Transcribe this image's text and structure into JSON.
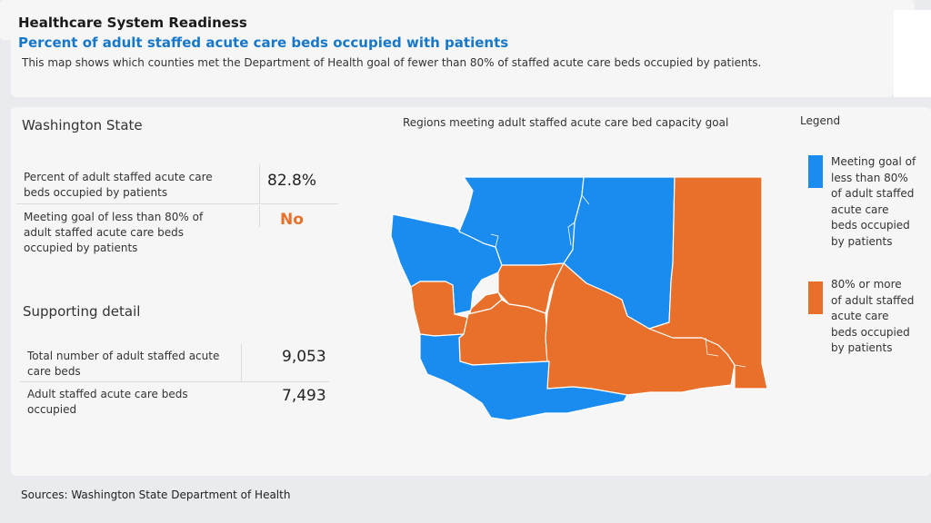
{
  "header": {
    "title": "Healthcare System Readiness",
    "subtitle": "Percent of adult staffed acute care beds occupied with patients",
    "description": "This map shows which counties met the Department of Health goal of fewer than 80% of staffed acute care beds occupied by patients."
  },
  "state": {
    "heading": "Washington State",
    "percent_label": "Percent of adult staffed acute care beds occupied by patients",
    "percent_value": "82.8%",
    "goal_label": "Meeting goal of less than 80% of adult staffed acute care beds occupied by patients",
    "goal_value": "No"
  },
  "support": {
    "heading": "Supporting detail",
    "total_label": "Total number of adult staffed acute care beds",
    "total_value": "9,053",
    "occupied_label": "Adult staffed acute care beds occupied",
    "occupied_value": "7,493"
  },
  "map": {
    "title": "Regions meeting adult staffed acute care bed capacity goal"
  },
  "legend": {
    "title": "Legend",
    "items": [
      {
        "label": "Meeting goal of\nless than 80%\nof adult staffed\nacute care\nbeds occupied\nby patients",
        "color": "#1a8cf0"
      },
      {
        "label": "80% or more\nof adult staffed\nacute care\nbeds occupied\nby patients",
        "color": "#e8702a"
      }
    ]
  },
  "colors": {
    "meeting": "#1a8cf0",
    "not_meeting": "#e8702a",
    "goal_no": "#e8702a",
    "subtitle": "#1778c9"
  },
  "footer": {
    "sources": "Sources: Washington State Department of Health"
  }
}
